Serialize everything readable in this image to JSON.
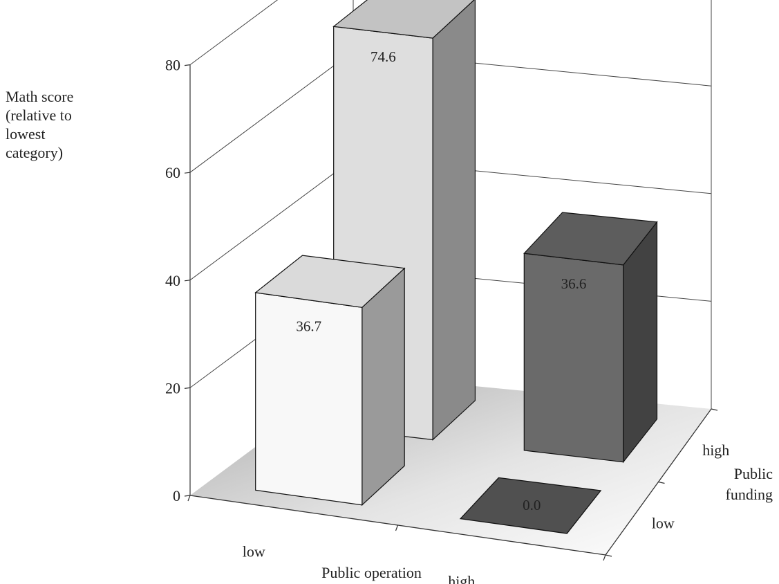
{
  "chart_data": {
    "type": "bar",
    "subtype": "3d-grid",
    "ylabel_lines": [
      "Math score",
      "(relative to",
      "lowest",
      "category)"
    ],
    "x_axis": {
      "label": "Public operation",
      "categories": [
        "low",
        "high"
      ]
    },
    "z_axis": {
      "label_lines": [
        "Public",
        "funding"
      ],
      "categories": [
        "low",
        "high"
      ]
    },
    "ylim": [
      0,
      80
    ],
    "yticks": [
      "0",
      "20",
      "40",
      "60",
      "80"
    ],
    "grid": true,
    "bars": [
      {
        "public_operation": "low",
        "public_funding": "low",
        "value": 36.7,
        "label": "36.7",
        "color": "#f8f8f8"
      },
      {
        "public_operation": "low",
        "public_funding": "high",
        "value": 74.6,
        "label": "74.6",
        "color": "#dedede"
      },
      {
        "public_operation": "high",
        "public_funding": "low",
        "value": 0.0,
        "label": "0.0",
        "color": "#505050"
      },
      {
        "public_operation": "high",
        "public_funding": "high",
        "value": 36.6,
        "label": "36.6",
        "color": "#6a6a6a"
      }
    ]
  }
}
